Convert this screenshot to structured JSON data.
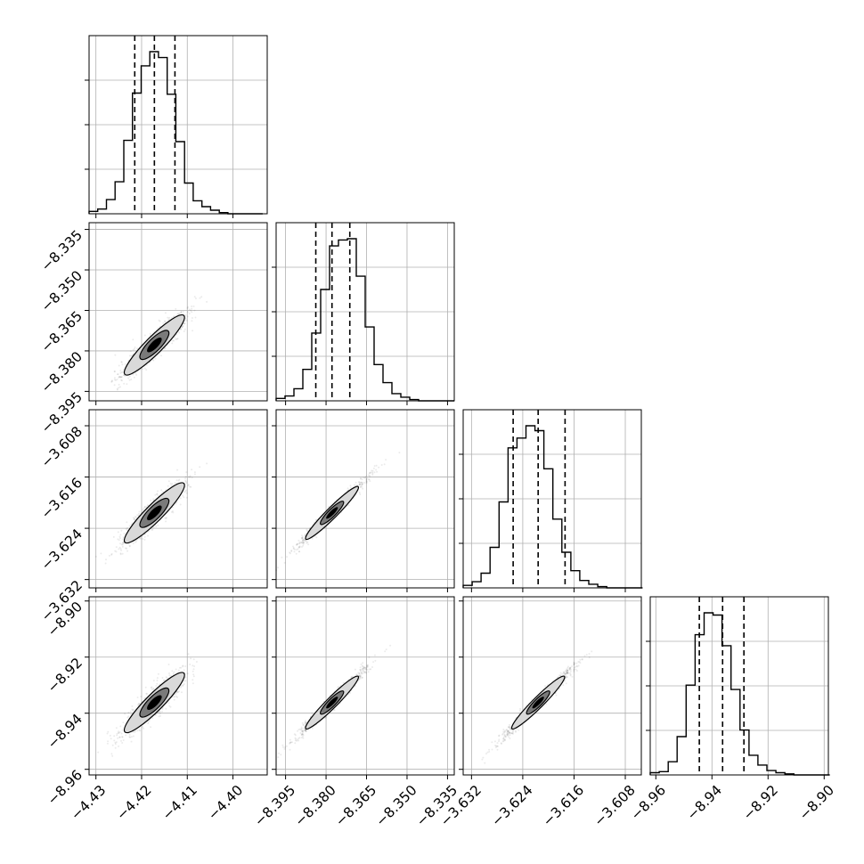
{
  "chart_data": {
    "type": "corner",
    "parameters": 4,
    "grid": true,
    "ticks": [
      [
        -4.43,
        -4.42,
        -4.41,
        -4.4
      ],
      [
        -8.395,
        -8.38,
        -8.365,
        -8.35,
        -8.335
      ],
      [
        -3.632,
        -3.624,
        -3.616,
        -3.608
      ],
      [
        -8.96,
        -8.94,
        -8.92,
        -8.9
      ]
    ],
    "tick_labels": [
      [
        "−4.43",
        "−4.42",
        "−4.41",
        "−4.40"
      ],
      [
        "−8.395",
        "−8.380",
        "−8.365",
        "−8.350",
        "−8.335"
      ],
      [
        "−3.632",
        "−3.624",
        "−3.616",
        "−3.608"
      ],
      [
        "−8.96",
        "−8.94",
        "−8.92",
        "−8.90"
      ]
    ],
    "ranges": [
      [
        -4.4315,
        -4.3925
      ],
      [
        -8.3985,
        -8.3325
      ],
      [
        -3.6333,
        -3.6055
      ],
      [
        -8.962,
        -8.8985
      ]
    ],
    "quantiles": [
      [
        -4.4215,
        -4.4172,
        -4.4127
      ],
      [
        -8.3838,
        -8.3778,
        -8.3712
      ],
      [
        -3.6255,
        -3.6216,
        -3.6174
      ],
      [
        -8.9445,
        -8.9362,
        -8.9286
      ]
    ],
    "medians": [
      -4.4172,
      -8.3778,
      -3.6216,
      -8.9362
    ],
    "histograms": [
      {
        "edges_start": -4.4315,
        "bin_width": 0.0019,
        "counts": [
          2,
          4,
          12,
          27,
          62,
          102,
          125,
          137,
          132,
          101,
          61,
          26,
          11,
          6,
          3,
          1,
          0,
          0,
          0,
          0
        ]
      },
      {
        "edges_start": -8.3985,
        "bin_width": 0.0033,
        "counts": [
          2,
          4,
          10,
          26,
          56,
          92,
          128,
          133,
          134,
          103,
          61,
          30,
          15,
          6,
          3,
          1,
          0,
          0,
          0,
          0
        ]
      },
      {
        "edges_start": -3.6333,
        "bin_width": 0.0014,
        "counts": [
          2,
          5,
          12,
          33,
          70,
          114,
          122,
          132,
          128,
          97,
          56,
          29,
          14,
          6,
          3,
          1,
          0,
          0,
          0,
          0
        ]
      },
      {
        "edges_start": -8.962,
        "bin_width": 0.0032,
        "counts": [
          2,
          3,
          12,
          35,
          82,
          128,
          148,
          146,
          118,
          78,
          41,
          18,
          9,
          4,
          2,
          1,
          0,
          0,
          0,
          0
        ]
      }
    ]
  }
}
